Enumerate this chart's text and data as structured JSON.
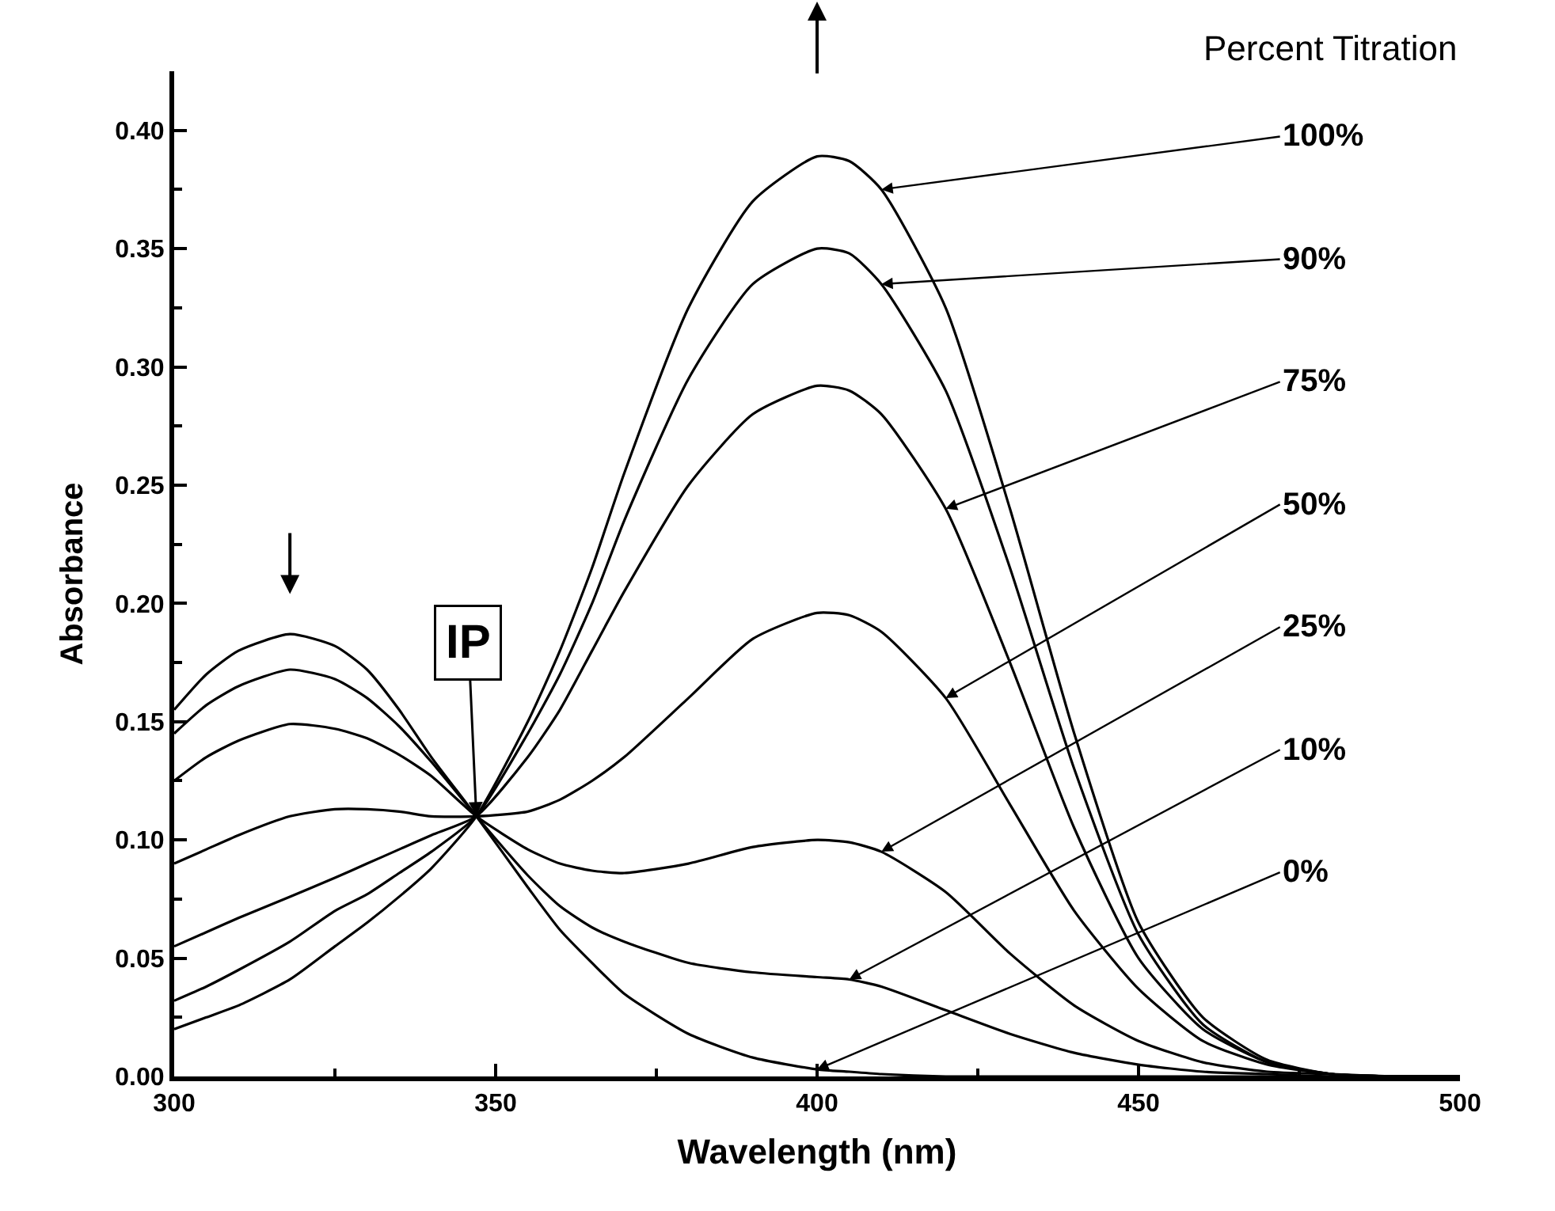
{
  "chart_data": {
    "type": "line",
    "xlabel": "Wavelength (nm)",
    "ylabel": "Absorbance",
    "legend_title": "Percent Titration",
    "xlim": [
      300,
      500
    ],
    "xticks": [
      300,
      350,
      400,
      450,
      500
    ],
    "ylim": [
      0,
      0.425
    ],
    "yticks": [
      {
        "value": 0,
        "label": "0.00"
      },
      0.05,
      {
        "value": 0.1,
        "label": "0.10"
      },
      0.15,
      {
        "value": 0.2,
        "label": "0.20"
      },
      0.25,
      {
        "value": 0.3,
        "label": "0.30"
      },
      0.35,
      {
        "value": 0.4,
        "label": "0.40"
      }
    ],
    "marker": "none",
    "line_style": "solid",
    "x": [
      300,
      305,
      310,
      318,
      325,
      330,
      335,
      340,
      347,
      355,
      360,
      365,
      370,
      380,
      390,
      400,
      405,
      410,
      420,
      430,
      440,
      450,
      460,
      470,
      480,
      490,
      500
    ],
    "series": [
      {
        "color": "#000000",
        "values": [
          0.155,
          0.17,
          0.18,
          0.187,
          0.182,
          0.172,
          0.155,
          0.135,
          0.11,
          0.08,
          0.062,
          0.048,
          0.035,
          0.018,
          0.008,
          0.003,
          0.002,
          0.001,
          0,
          0,
          0,
          0,
          0,
          0,
          0,
          0,
          0
        ]
      },
      {
        "color": "#000000",
        "values": [
          0.145,
          0.157,
          0.165,
          0.172,
          0.168,
          0.16,
          0.148,
          0.133,
          0.11,
          0.085,
          0.072,
          0.063,
          0.057,
          0.048,
          0.044,
          0.042,
          0.041,
          0.038,
          0.028,
          0.018,
          0.01,
          0.005,
          0.002,
          0.001,
          0,
          0,
          0
        ]
      },
      {
        "color": "#000000",
        "values": [
          0.125,
          0.135,
          0.142,
          0.149,
          0.147,
          0.143,
          0.136,
          0.127,
          0.11,
          0.096,
          0.09,
          0.087,
          0.086,
          0.09,
          0.097,
          0.1,
          0.099,
          0.095,
          0.078,
          0.052,
          0.03,
          0.015,
          0.006,
          0.002,
          0.001,
          0,
          0
        ]
      },
      {
        "color": "#000000",
        "values": [
          0.09,
          0.096,
          0.102,
          0.11,
          0.113,
          0.113,
          0.112,
          0.11,
          0.11,
          0.112,
          0.117,
          0.125,
          0.135,
          0.16,
          0.185,
          0.196,
          0.195,
          0.188,
          0.16,
          0.115,
          0.07,
          0.037,
          0.015,
          0.005,
          0.001,
          0,
          0
        ]
      },
      {
        "color": "#000000",
        "values": [
          0.055,
          0.061,
          0.067,
          0.076,
          0.084,
          0.09,
          0.096,
          0.102,
          0.11,
          0.135,
          0.155,
          0.18,
          0.205,
          0.25,
          0.28,
          0.292,
          0.29,
          0.28,
          0.24,
          0.175,
          0.105,
          0.05,
          0.02,
          0.006,
          0.001,
          0,
          0
        ]
      },
      {
        "color": "#000000",
        "values": [
          0.032,
          0.038,
          0.045,
          0.057,
          0.07,
          0.077,
          0.086,
          0.095,
          0.11,
          0.145,
          0.17,
          0.2,
          0.235,
          0.295,
          0.335,
          0.35,
          0.348,
          0.335,
          0.29,
          0.215,
          0.13,
          0.06,
          0.022,
          0.006,
          0.001,
          0,
          0
        ]
      },
      {
        "color": "#000000",
        "values": [
          0.02,
          0.025,
          0.03,
          0.041,
          0.055,
          0.065,
          0.076,
          0.088,
          0.11,
          0.15,
          0.18,
          0.215,
          0.255,
          0.325,
          0.37,
          0.389,
          0.387,
          0.375,
          0.325,
          0.24,
          0.145,
          0.065,
          0.025,
          0.007,
          0.001,
          0,
          0
        ]
      }
    ],
    "annotations": [
      {
        "text": "100%",
        "x": 410,
        "y": 0.375
      },
      {
        "text": "90%",
        "x": 410,
        "y": 0.335
      },
      {
        "text": "75%",
        "x": 420,
        "y": 0.24
      },
      {
        "text": "50%",
        "x": 420,
        "y": 0.16
      },
      {
        "text": "25%",
        "x": 410,
        "y": 0.095
      },
      {
        "text": "10%",
        "x": 405,
        "y": 0.041
      },
      {
        "text": "0%",
        "x": 400,
        "y": 0.003
      },
      {
        "text": "IP",
        "x": 347,
        "y": 0.11
      }
    ]
  }
}
